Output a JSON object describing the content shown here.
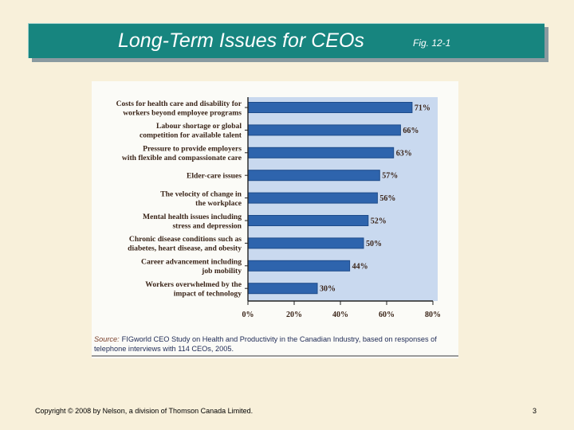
{
  "slide": {
    "title": "Long-Term Issues for CEOs",
    "figure_label": "Fig. 12-1",
    "footer": "Copyright © 2008 by Nelson, a division of Thomson Canada Limited.",
    "page_number": "3"
  },
  "source": {
    "prefix": "Source:",
    "text": "FIGworld CEO Study on Health and Productivity in the Canadian Industry, based on responses of telephone interviews with 114 CEOs, 2005."
  },
  "chart_data": {
    "type": "bar",
    "orientation": "horizontal",
    "title": "",
    "xlabel": "",
    "ylabel": "",
    "xlim": [
      0,
      80
    ],
    "x_ticks": [
      "0%",
      "20%",
      "40%",
      "60%",
      "80%"
    ],
    "categories": [
      [
        "Costs for health care and disability for",
        "workers beyond employee programs"
      ],
      [
        "Labour shortage or global",
        "competition for available talent"
      ],
      [
        "Pressure to provide employers",
        "with flexible and compassionate care"
      ],
      [
        "Elder-care issues"
      ],
      [
        "The velocity of change in",
        "the workplace"
      ],
      [
        "Mental health issues including",
        "stress and depression"
      ],
      [
        "Chronic disease conditions such as",
        "diabetes, heart disease, and obesity"
      ],
      [
        "Career advancement including",
        "job mobility"
      ],
      [
        "Workers overwhelmed by the",
        "impact of technology"
      ]
    ],
    "values": [
      71,
      66,
      63,
      57,
      56,
      52,
      50,
      44,
      30
    ],
    "value_labels": [
      "71%",
      "66%",
      "63%",
      "57%",
      "56%",
      "52%",
      "50%",
      "44%",
      "30%"
    ],
    "colors": {
      "bar": "#2e64ad",
      "bar_edge": "#1e4b8a",
      "plot_bg": "#c9d9ef",
      "text": "#3a2418"
    }
  }
}
